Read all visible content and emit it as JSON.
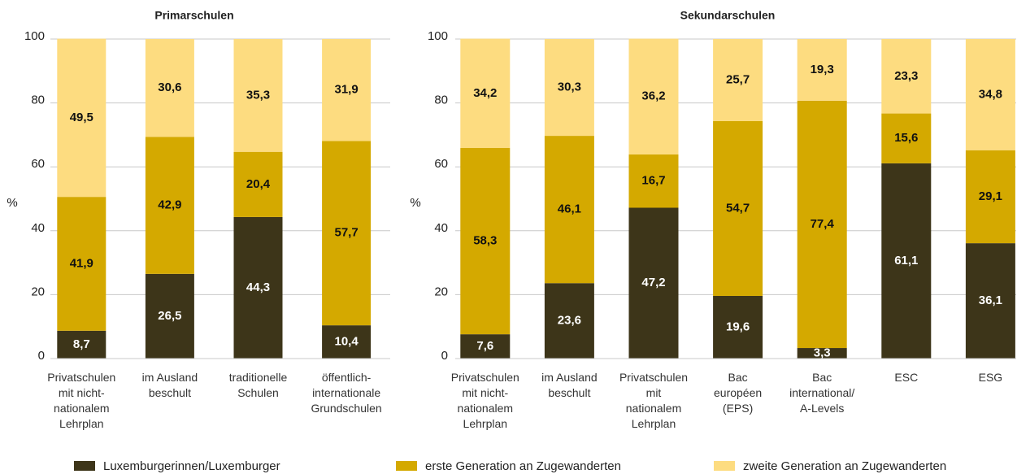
{
  "chart_data": [
    {
      "type": "stacked_bar",
      "title": "Primarschulen",
      "y_label": "%",
      "categories": [
        "Privatschulen\nmit nicht-\nnationalem\nLehrplan",
        "im Ausland\nbeschult",
        "traditionelle\nSchulen",
        "öffentlich-\ninternationale\nGrundschulen"
      ],
      "series": [
        {
          "name": "Luxemburgerinnen/Luxemburger",
          "color": "#3d3519",
          "values": [
            8.7,
            26.5,
            44.3,
            10.4
          ],
          "value_labels": [
            "8,7",
            "26,5",
            "44,3",
            "10,4"
          ]
        },
        {
          "name": "erste Generation an Zugewanderten",
          "color": "#d4a900",
          "values": [
            41.9,
            42.9,
            20.4,
            57.7
          ],
          "value_labels": [
            "41,9",
            "42,9",
            "20,4",
            "57,7"
          ]
        },
        {
          "name": "zweite Generation an Zugewanderten",
          "color": "#fddc80",
          "values": [
            49.5,
            30.6,
            35.3,
            31.9
          ],
          "value_labels": [
            "49,5",
            "30,6",
            "35,3",
            "31,9"
          ]
        }
      ],
      "ylim": [
        0,
        100
      ],
      "yticks": [
        0,
        20,
        40,
        60,
        80,
        100
      ],
      "grid": true
    },
    {
      "type": "stacked_bar",
      "title": "Sekundarschulen",
      "y_label": "%",
      "categories": [
        "Privatschulen\nmit nicht-\nnationalem\nLehrplan",
        "im Ausland\nbeschult",
        "Privatschulen\nmit\nnationalem\nLehrplan",
        "Bac\neuropéen\n(EPS)",
        "Bac\ninternational/\nA-Levels",
        "ESC",
        "ESG"
      ],
      "series": [
        {
          "color": "#3d3519",
          "values": [
            7.6,
            23.6,
            47.2,
            19.6,
            3.3,
            61.1,
            36.1
          ],
          "value_labels": [
            "7,6",
            "23,6",
            "47,2",
            "19,6",
            "3,3",
            "61,1",
            "36,1"
          ]
        },
        {
          "color": "#d4a900",
          "values": [
            58.3,
            46.1,
            16.7,
            54.7,
            77.4,
            15.6,
            29.1
          ],
          "value_labels": [
            "58,3",
            "46,1",
            "16,7",
            "54,7",
            "77,4",
            "15,6",
            "29,1"
          ]
        },
        {
          "color": "#fddc80",
          "values": [
            34.2,
            30.3,
            36.2,
            25.7,
            19.3,
            23.3,
            34.8
          ],
          "value_labels": [
            "34,2",
            "30,3",
            "36,2",
            "25,7",
            "19,3",
            "23,3",
            "34,8"
          ]
        }
      ],
      "ylim": [
        0,
        100
      ],
      "yticks": [
        0,
        20,
        40,
        60,
        80,
        100
      ],
      "grid": true
    }
  ]
}
